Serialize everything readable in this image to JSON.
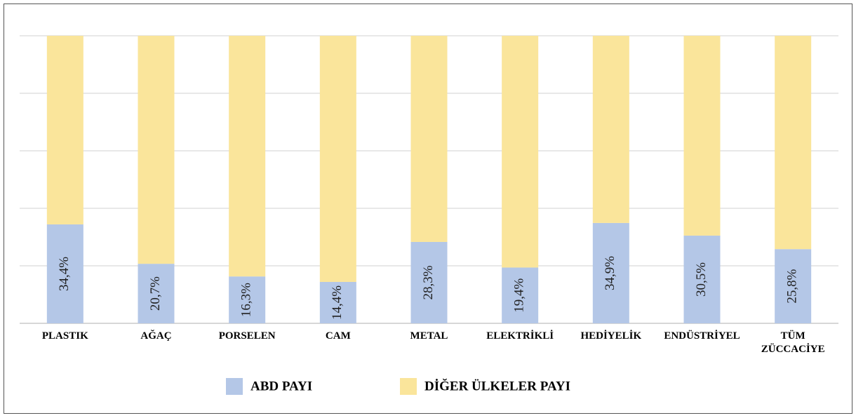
{
  "chart_data": {
    "type": "stacked_bar",
    "categories": [
      "PLASTIK",
      "AĞAÇ",
      "PORSELEN",
      "CAM",
      "METAL",
      "ELEKTRİKLİ",
      "HEDİYELİK",
      "ENDÜSTRİYEL",
      "TÜM ZÜCCACİYE"
    ],
    "series": [
      {
        "name": "ABD PAYI",
        "color": "#b4c7e7",
        "values": [
          34.4,
          20.7,
          16.3,
          14.4,
          28.3,
          19.4,
          34.9,
          30.5,
          25.8
        ],
        "value_labels": [
          "34,4%",
          "20,7%",
          "16,3%",
          "14,4%",
          "28,3%",
          "19,4%",
          "34,9%",
          "30,5%",
          "25,8%"
        ]
      },
      {
        "name": "DİĞER ÜLKELER PAYI",
        "color": "#fae59b",
        "values": [
          65.6,
          79.3,
          83.7,
          85.6,
          71.7,
          80.6,
          65.1,
          69.5,
          74.2
        ]
      }
    ],
    "ylim": [
      0,
      100
    ],
    "yticks": [
      0,
      20,
      40,
      60,
      80,
      100
    ],
    "grid": true
  }
}
